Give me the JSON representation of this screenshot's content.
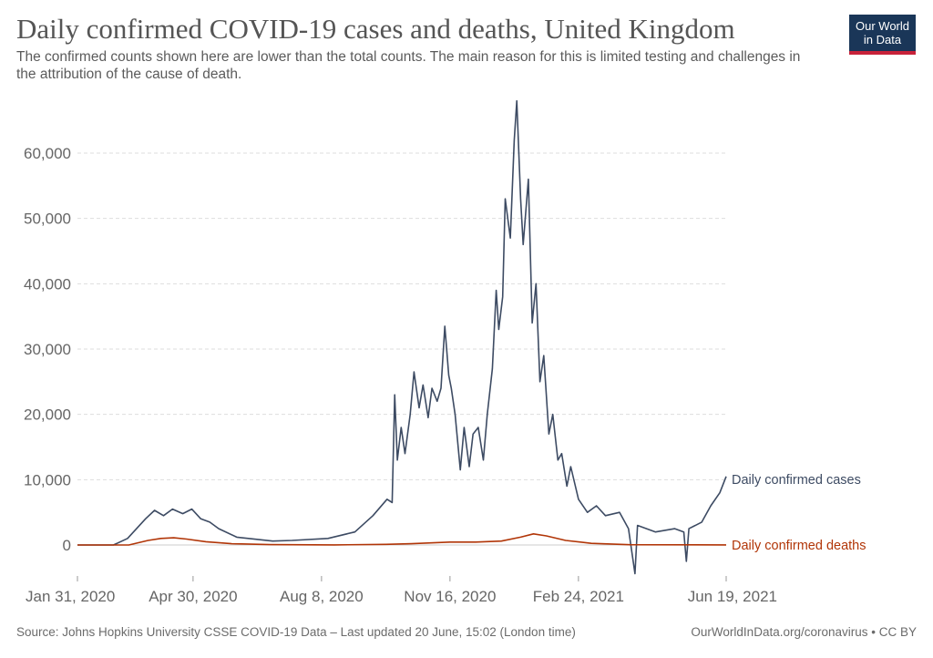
{
  "title": "Daily confirmed COVID-19 cases and deaths, United Kingdom",
  "subtitle": "The confirmed counts shown here are lower than the total counts. The main reason for this is limited testing and challenges in the attribution of the cause of death.",
  "logo": [
    "Our World",
    "in Data"
  ],
  "source": "Source: Johns Hopkins University CSSE COVID-19 Data – Last updated 20 June, 15:02 (London time)",
  "credit": "OurWorldInData.org/coronavirus • CC BY",
  "chart_data": {
    "type": "line",
    "title": "Daily confirmed COVID-19 cases and deaths, United Kingdom",
    "xlabel": "",
    "ylabel": "",
    "x_unit": "days since Jan 31, 2020",
    "xlim": [
      0,
      505
    ],
    "ylim": [
      -5000,
      68000
    ],
    "yticks": [
      0,
      10000,
      20000,
      30000,
      40000,
      50000,
      60000
    ],
    "ytick_labels": [
      "0",
      "10,000",
      "20,000",
      "30,000",
      "40,000",
      "50,000",
      "60,000"
    ],
    "xticks": [
      0,
      90,
      190,
      290,
      390,
      505
    ],
    "xtick_labels": [
      "Jan 31, 2020",
      "Apr 30, 2020",
      "Aug 8, 2020",
      "Nov 16, 2020",
      "Feb 24, 2021",
      "Jun 19, 2021"
    ],
    "grid": true,
    "legend": "inline-right",
    "series": [
      {
        "name": "Daily confirmed cases",
        "color": "#3d4b63",
        "points": [
          [
            0,
            0
          ],
          [
            28,
            0
          ],
          [
            39,
            1000
          ],
          [
            53,
            4000
          ],
          [
            60,
            5300
          ],
          [
            67,
            4500
          ],
          [
            74,
            5500
          ],
          [
            82,
            4800
          ],
          [
            89,
            5500
          ],
          [
            96,
            4000
          ],
          [
            103,
            3500
          ],
          [
            110,
            2500
          ],
          [
            124,
            1200
          ],
          [
            152,
            600
          ],
          [
            167,
            700
          ],
          [
            195,
            1000
          ],
          [
            216,
            2000
          ],
          [
            230,
            4500
          ],
          [
            241,
            7000
          ],
          [
            245,
            6500
          ],
          [
            247,
            23000
          ],
          [
            249,
            13000
          ],
          [
            252,
            18000
          ],
          [
            255,
            14000
          ],
          [
            259,
            20000
          ],
          [
            262,
            26500
          ],
          [
            266,
            21000
          ],
          [
            269,
            24500
          ],
          [
            273,
            19500
          ],
          [
            276,
            24000
          ],
          [
            280,
            22000
          ],
          [
            283,
            24000
          ],
          [
            286,
            33500
          ],
          [
            289,
            26000
          ],
          [
            291,
            24000
          ],
          [
            294,
            20000
          ],
          [
            298,
            11500
          ],
          [
            301,
            18000
          ],
          [
            305,
            12000
          ],
          [
            308,
            17000
          ],
          [
            312,
            18000
          ],
          [
            316,
            13000
          ],
          [
            319,
            20000
          ],
          [
            323,
            27000
          ],
          [
            326,
            39000
          ],
          [
            328,
            33000
          ],
          [
            331,
            38000
          ],
          [
            333,
            53000
          ],
          [
            337,
            47000
          ],
          [
            340,
            62000
          ],
          [
            342,
            68000
          ],
          [
            345,
            53000
          ],
          [
            347,
            46000
          ],
          [
            351,
            56000
          ],
          [
            354,
            34000
          ],
          [
            357,
            40000
          ],
          [
            360,
            25000
          ],
          [
            363,
            29000
          ],
          [
            367,
            17000
          ],
          [
            370,
            20000
          ],
          [
            374,
            13000
          ],
          [
            377,
            14000
          ],
          [
            381,
            9000
          ],
          [
            384,
            12000
          ],
          [
            390,
            7000
          ],
          [
            397,
            5000
          ],
          [
            404,
            6000
          ],
          [
            411,
            4500
          ],
          [
            422,
            5000
          ],
          [
            429,
            2500
          ],
          [
            434,
            -4400
          ],
          [
            436,
            3000
          ],
          [
            450,
            2000
          ],
          [
            465,
            2500
          ],
          [
            472,
            2000
          ],
          [
            474,
            -2500
          ],
          [
            476,
            2500
          ],
          [
            486,
            3500
          ],
          [
            493,
            6000
          ],
          [
            500,
            8000
          ],
          [
            505,
            10500
          ]
        ]
      },
      {
        "name": "Daily confirmed deaths",
        "color": "#b13507",
        "points": [
          [
            0,
            0
          ],
          [
            40,
            0
          ],
          [
            55,
            700
          ],
          [
            65,
            1000
          ],
          [
            75,
            1100
          ],
          [
            85,
            900
          ],
          [
            100,
            500
          ],
          [
            120,
            200
          ],
          [
            150,
            60
          ],
          [
            200,
            20
          ],
          [
            240,
            100
          ],
          [
            260,
            200
          ],
          [
            290,
            450
          ],
          [
            310,
            450
          ],
          [
            330,
            600
          ],
          [
            345,
            1200
          ],
          [
            355,
            1700
          ],
          [
            365,
            1400
          ],
          [
            380,
            700
          ],
          [
            400,
            250
          ],
          [
            430,
            40
          ],
          [
            505,
            15
          ]
        ]
      }
    ]
  }
}
